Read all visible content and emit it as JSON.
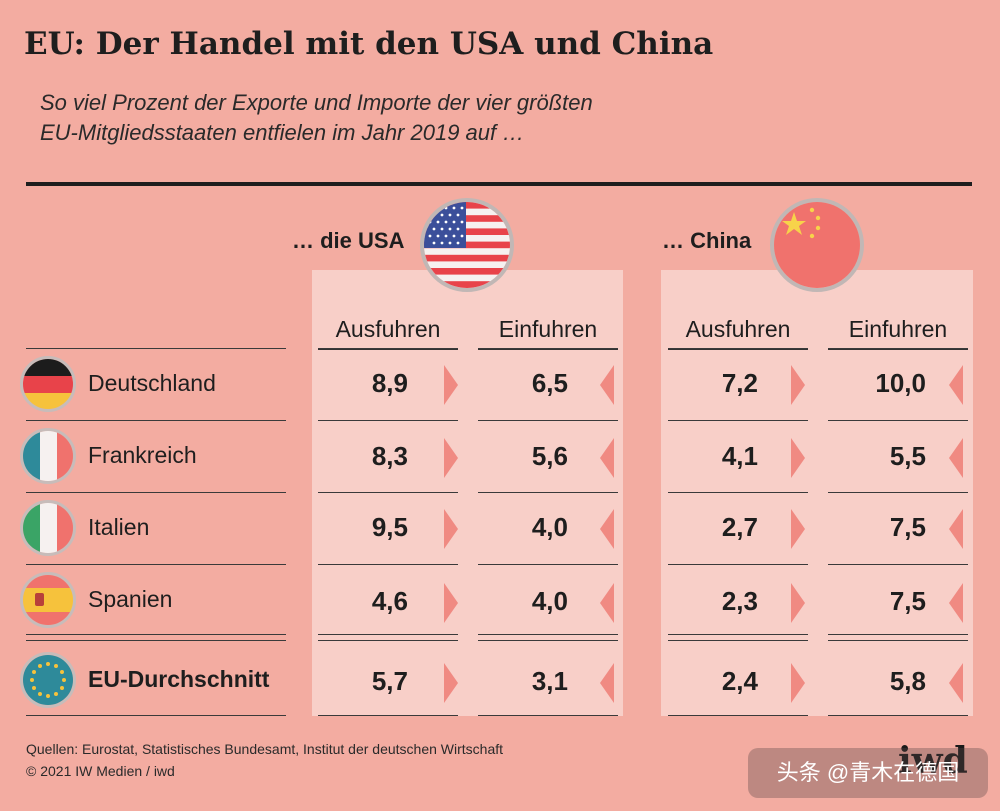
{
  "title": "EU: Der Handel mit den USA und China",
  "subtitle_line1": "So viel Prozent der Exporte und Importe der vier größten",
  "subtitle_line2": "EU-Mitgliedsstaaten entfielen im Jahr 2019 auf …",
  "chart_data": {
    "type": "table",
    "title": "EU: Der Handel mit den USA und China",
    "unit": "Prozent",
    "groups": [
      {
        "name": "… die USA",
        "columns": [
          "Ausfuhren",
          "Einfuhren"
        ]
      },
      {
        "name": "… China",
        "columns": [
          "Ausfuhren",
          "Einfuhren"
        ]
      }
    ],
    "rows": [
      {
        "country": "Deutschland",
        "usa_export": "8,9",
        "usa_import": "6,5",
        "china_export": "7,2",
        "china_import": "10,0"
      },
      {
        "country": "Frankreich",
        "usa_export": "8,3",
        "usa_import": "5,6",
        "china_export": "4,1",
        "china_import": "5,5"
      },
      {
        "country": "Italien",
        "usa_export": "9,5",
        "usa_import": "4,0",
        "china_export": "2,7",
        "china_import": "7,5"
      },
      {
        "country": "Spanien",
        "usa_export": "4,6",
        "usa_import": "4,0",
        "china_export": "2,3",
        "china_import": "7,5"
      },
      {
        "country": "EU-Durchschnitt",
        "usa_export": "5,7",
        "usa_import": "3,1",
        "china_export": "2,4",
        "china_import": "5,8"
      }
    ]
  },
  "usa_head": "… die USA",
  "china_head": "… China",
  "col_export": "Ausfuhren",
  "col_import": "Einfuhren",
  "source_line1": "Quellen: Eurostat, Statistisches Bundesamt, Institut der deutschen Wirtschaft",
  "source_line2": "© 2021 IW Medien / iwd",
  "logo": "iwd",
  "watermark": "头条 @青木在德国",
  "colors": {
    "background": "#f3aca1",
    "panel": "#f8cfc8",
    "arrow": "#f08a82"
  }
}
